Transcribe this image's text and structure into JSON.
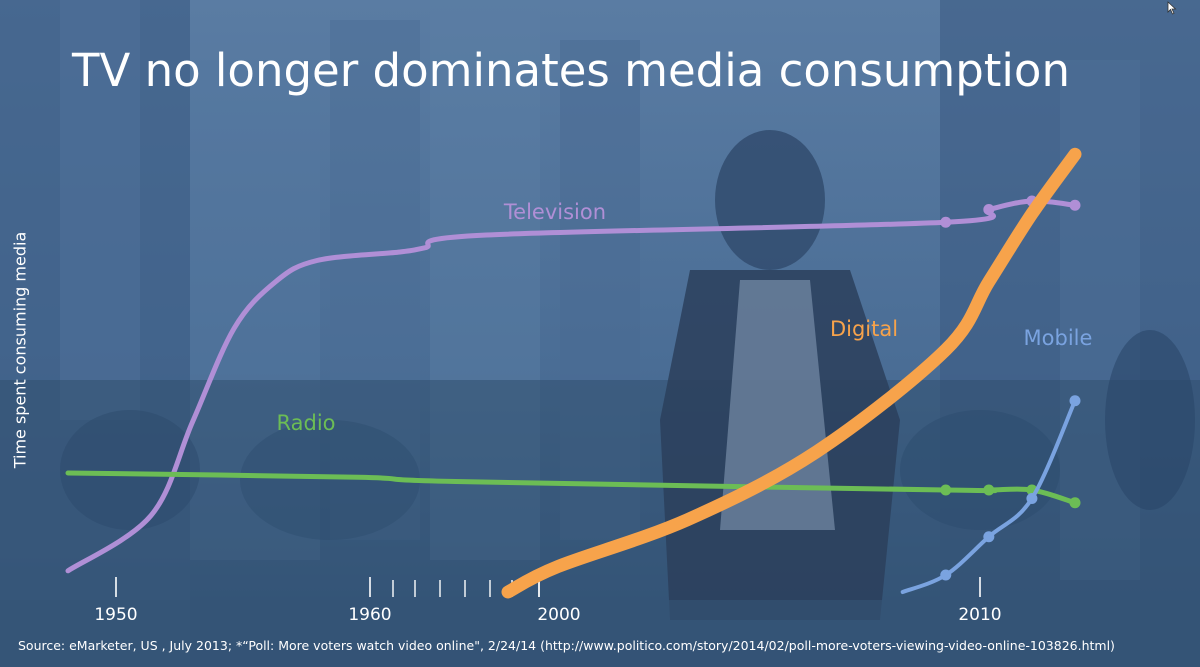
{
  "slide": {
    "title": "TV no longer dominates media consumption",
    "source": "Source: eMarketer, US , July 2013;  *“Poll: More voters watch video online\", 2/24/14 (http://www.politico.com/story/2014/02/poll-more-voters-viewing-video-online-103826.html)"
  },
  "chart_data": {
    "type": "line",
    "title": "TV no longer dominates media consumption",
    "xlabel": "",
    "ylabel": "Time spent consuming media",
    "x_tick_labels": [
      "1950",
      "1960",
      "2000",
      "2010"
    ],
    "y_axis": "unlabeled (relative time)",
    "grid": false,
    "legend": "inline labels next to each series",
    "series": [
      {
        "name": "Television",
        "color": "#b08fd6",
        "points": [
          [
            1946,
            5
          ],
          [
            1950,
            18
          ],
          [
            1952,
            40
          ],
          [
            1954,
            62
          ],
          [
            1956,
            73
          ],
          [
            1958,
            78
          ],
          [
            1962,
            80
          ],
          [
            1970,
            81
          ],
          [
            1990,
            84
          ],
          [
            2009,
            87
          ],
          [
            2010,
            90
          ],
          [
            2011,
            92
          ],
          [
            2012,
            91
          ]
        ],
        "markers_from": 2009
      },
      {
        "name": "Radio",
        "color": "#6cbd55",
        "points": [
          [
            1946,
            28
          ],
          [
            1960,
            27
          ],
          [
            1980,
            26
          ],
          [
            2009,
            24
          ],
          [
            2010,
            24
          ],
          [
            2011,
            24
          ],
          [
            2012,
            21
          ]
        ],
        "markers_from": 2009
      },
      {
        "name": "Digital",
        "color": "#f7a34b",
        "points": [
          [
            1997,
            0
          ],
          [
            2000,
            6
          ],
          [
            2003,
            17
          ],
          [
            2006,
            33
          ],
          [
            2009,
            57
          ],
          [
            2010,
            73
          ],
          [
            2011,
            89
          ],
          [
            2012,
            103
          ]
        ],
        "markers_from": null
      },
      {
        "name": "Mobile",
        "color": "#7aa3e0",
        "points": [
          [
            2008,
            0
          ],
          [
            2009,
            4
          ],
          [
            2010,
            13
          ],
          [
            2011,
            22
          ],
          [
            2012,
            45
          ]
        ],
        "markers_from": 2009
      }
    ]
  }
}
